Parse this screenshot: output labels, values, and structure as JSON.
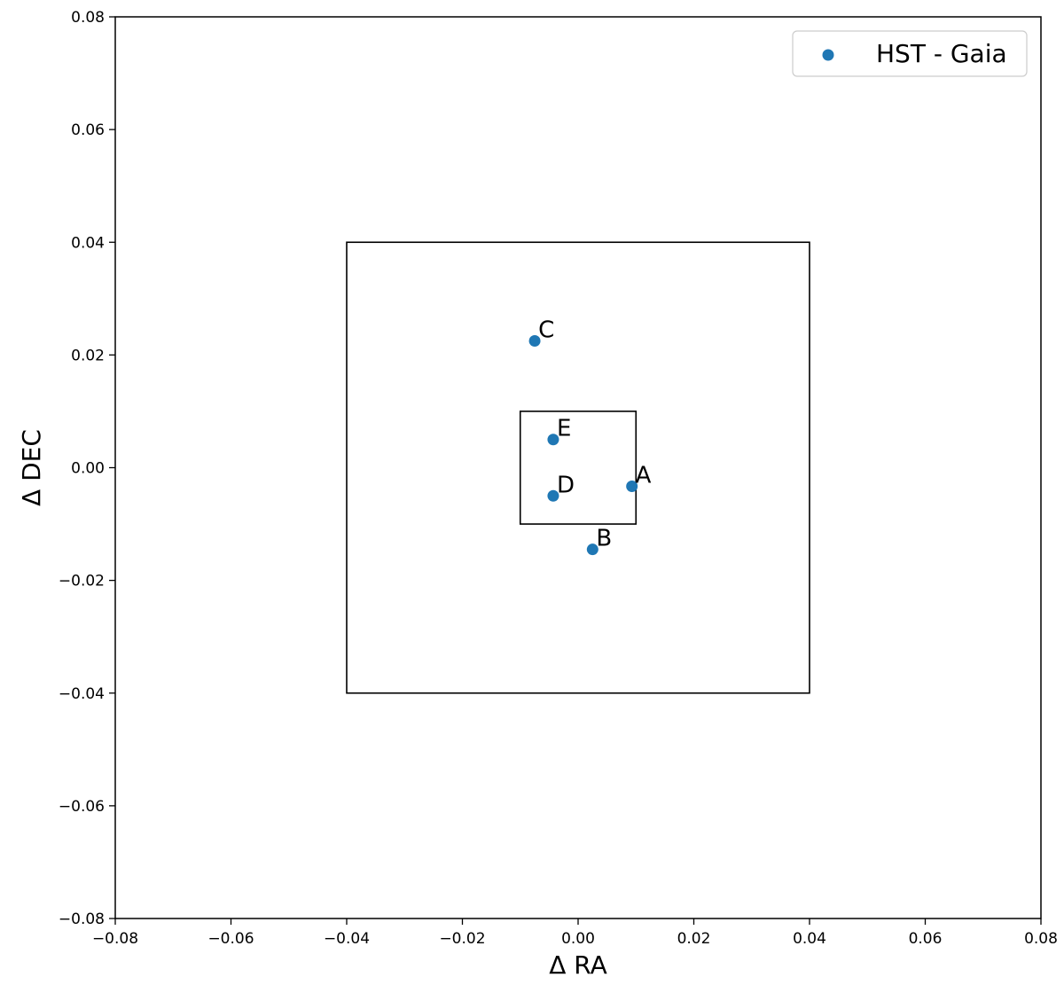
{
  "chart_data": {
    "type": "scatter",
    "title": "",
    "xlabel": "Δ RA",
    "ylabel": "Δ DEC",
    "xlim": [
      -0.08,
      0.08
    ],
    "ylim": [
      -0.08,
      0.08
    ],
    "xticks": [
      -0.08,
      -0.06,
      -0.04,
      -0.02,
      0.0,
      0.02,
      0.04,
      0.06,
      0.08
    ],
    "yticks": [
      -0.08,
      -0.06,
      -0.04,
      -0.02,
      0.0,
      0.02,
      0.04,
      0.06,
      0.08
    ],
    "xtick_labels": [
      "−0.08",
      "−0.06",
      "−0.04",
      "−0.02",
      "0.00",
      "0.02",
      "0.04",
      "0.06",
      "0.08"
    ],
    "ytick_labels": [
      "−0.08",
      "−0.06",
      "−0.04",
      "−0.02",
      "0.00",
      "0.02",
      "0.04",
      "0.06",
      "0.08"
    ],
    "grid": false,
    "legend": {
      "position": "top-right",
      "entries": [
        "HST - Gaia"
      ]
    },
    "series": [
      {
        "name": "HST - Gaia",
        "color": "#1f77b4",
        "points": [
          {
            "label": "A",
            "x": 0.0093,
            "y": -0.0033
          },
          {
            "label": "B",
            "x": 0.0025,
            "y": -0.0145
          },
          {
            "label": "C",
            "x": -0.0075,
            "y": 0.0225
          },
          {
            "label": "D",
            "x": -0.0043,
            "y": -0.005
          },
          {
            "label": "E",
            "x": -0.0043,
            "y": 0.005
          }
        ]
      }
    ],
    "boxes": [
      {
        "x0": -0.04,
        "x1": 0.04,
        "y0": -0.04,
        "y1": 0.04
      },
      {
        "x0": -0.01,
        "x1": 0.01,
        "y0": -0.01,
        "y1": 0.01
      }
    ]
  }
}
